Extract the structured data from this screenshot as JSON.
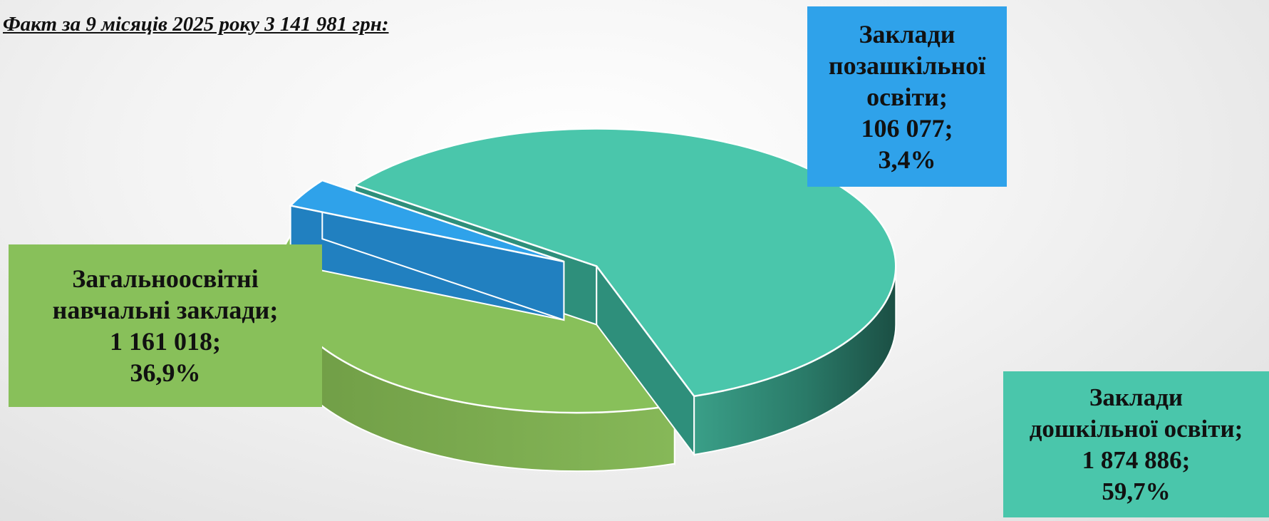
{
  "title": "Факт за 9 місяців 2025 року 3 141 981 грн:",
  "chart_data": {
    "type": "pie",
    "title": "Факт за 9 місяців 2025 року 3 141 981 грн:",
    "total": 3141981,
    "slices": [
      {
        "name_lines": [
          "Заклади",
          "позашкільної",
          "освіти;"
        ],
        "value": 106077,
        "value_label": "106 077;",
        "percent": 3.4,
        "percent_label": "3,4%",
        "color": "#2fa2ea",
        "side_color": "#2180c0"
      },
      {
        "name_lines": [
          "Заклади",
          "дошкільної освіти;"
        ],
        "value": 1874886,
        "value_label": "1 874 886;",
        "percent": 59.7,
        "percent_label": "59,7%",
        "color": "#4ac6ab",
        "side_color": "#2e8f7b"
      },
      {
        "name_lines": [
          "Загальноосвітні",
          "навчальні заклади;"
        ],
        "value": 1161018,
        "value_label": "1 161 018;",
        "percent": 36.9,
        "percent_label": "36,9%",
        "color": "#88c05a",
        "side_color": "#4e7230"
      }
    ]
  }
}
